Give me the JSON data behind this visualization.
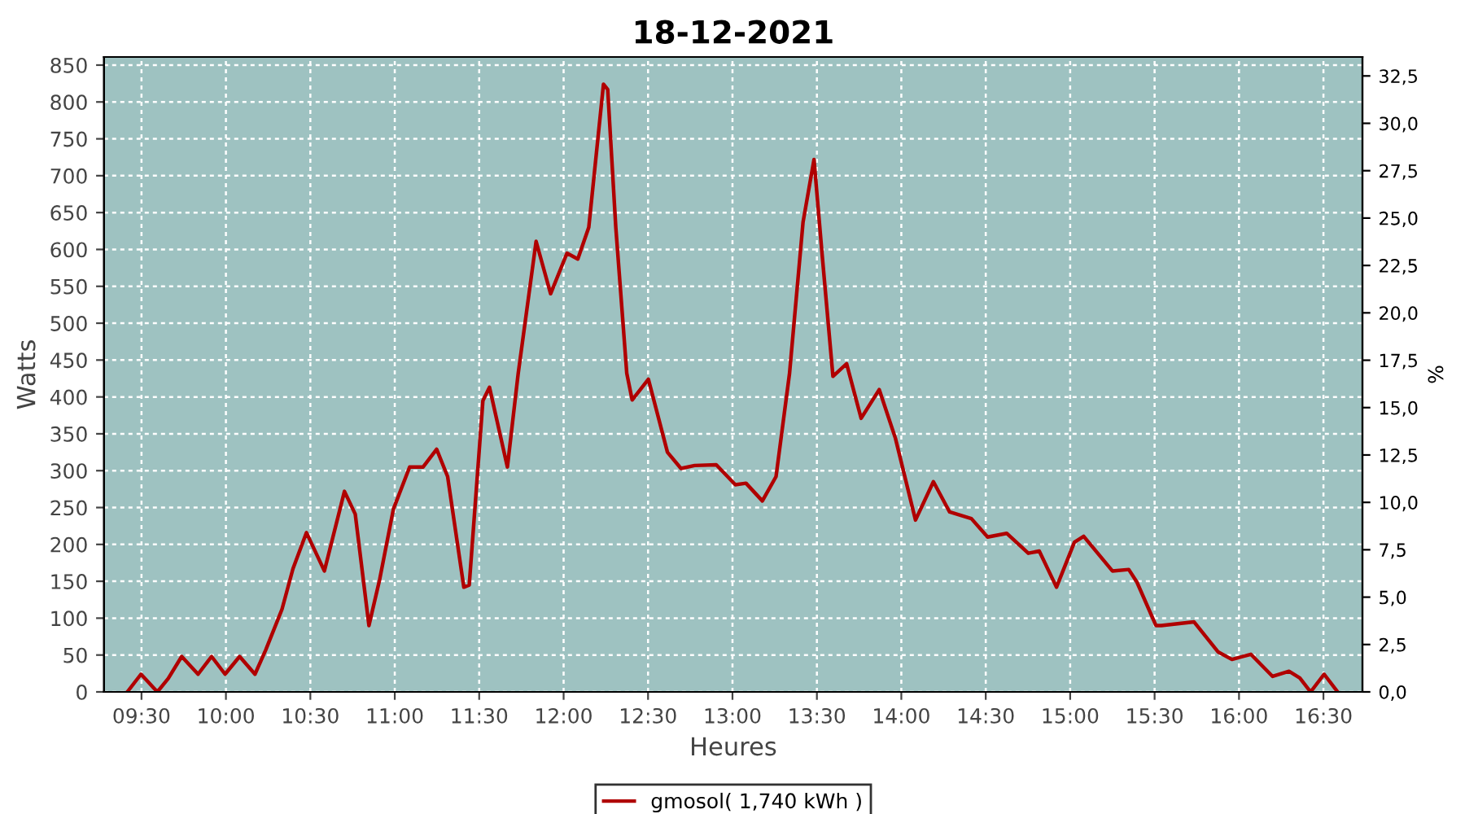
{
  "chart_data": {
    "type": "line",
    "title": "18-12-2021",
    "xlabel": "Heures",
    "ylabel": "Watts",
    "y2label": "%",
    "series": [
      {
        "name": "gmosol( 1,740 kWh )",
        "color": "#b00000",
        "x": [
          9.416,
          9.497,
          9.594,
          9.658,
          9.738,
          9.835,
          9.915,
          9.995,
          10.081,
          10.172,
          10.236,
          10.332,
          10.397,
          10.477,
          10.583,
          10.702,
          10.766,
          10.847,
          10.911,
          10.992,
          11.088,
          11.168,
          11.248,
          11.313,
          11.409,
          11.441,
          11.522,
          11.561,
          11.667,
          11.731,
          11.837,
          11.923,
          12.02,
          12.084,
          12.149,
          12.236,
          12.261,
          12.309,
          12.374,
          12.406,
          12.502,
          12.615,
          12.695,
          12.776,
          12.904,
          13.017,
          13.08,
          13.177,
          13.258,
          13.338,
          13.418,
          13.483,
          13.531,
          13.595,
          13.676,
          13.762,
          13.869,
          13.965,
          14.084,
          14.19,
          14.286,
          14.415,
          14.511,
          14.624,
          14.752,
          14.817,
          14.919,
          15.025,
          15.08,
          15.25,
          15.347,
          15.395,
          15.508,
          15.54,
          15.733,
          15.877,
          15.958,
          16.07,
          16.199,
          16.296,
          16.36,
          16.424,
          16.504,
          16.584
        ],
        "values": [
          0,
          24,
          0,
          18,
          48,
          24,
          48,
          24,
          48,
          24,
          57,
          112,
          167,
          216,
          164,
          272,
          241,
          90,
          153,
          248,
          305,
          305,
          329,
          292,
          142,
          145,
          395,
          413,
          305,
          432,
          611,
          540,
          595,
          587,
          630,
          824,
          817,
          630,
          432,
          396,
          424,
          325,
          303,
          307,
          308,
          281,
          283,
          259,
          292,
          432,
          637,
          722,
          593,
          428,
          445,
          371,
          410,
          344,
          233,
          285,
          244,
          235,
          210,
          215,
          188,
          191,
          142,
          203,
          211,
          164,
          166,
          149,
          90,
          90,
          95,
          54,
          44,
          51,
          21,
          28,
          19,
          0,
          24,
          0
        ]
      }
    ],
    "xlim": [
      9.278,
      16.731
    ],
    "xticks": [
      {
        "value": 9.5,
        "label": "09:30"
      },
      {
        "value": 10,
        "label": "10:00"
      },
      {
        "value": 10.5,
        "label": "10:30"
      },
      {
        "value": 11,
        "label": "11:00"
      },
      {
        "value": 11.5,
        "label": "11:30"
      },
      {
        "value": 12,
        "label": "12:00"
      },
      {
        "value": 12.5,
        "label": "12:30"
      },
      {
        "value": 13,
        "label": "13:00"
      },
      {
        "value": 13.5,
        "label": "13:30"
      },
      {
        "value": 14,
        "label": "14:00"
      },
      {
        "value": 14.5,
        "label": "14:30"
      },
      {
        "value": 15,
        "label": "15:00"
      },
      {
        "value": 15.5,
        "label": "15:30"
      },
      {
        "value": 16,
        "label": "16:00"
      },
      {
        "value": 16.5,
        "label": "16:30"
      }
    ],
    "ylim": [
      0,
      861
    ],
    "yticks": [
      0,
      50,
      100,
      150,
      200,
      250,
      300,
      350,
      400,
      450,
      500,
      550,
      600,
      650,
      700,
      750,
      800,
      850
    ],
    "y2lim": [
      0,
      33.5
    ],
    "y2ticks": [
      {
        "value": 0,
        "label": "0,0"
      },
      {
        "value": 2.5,
        "label": "2,5"
      },
      {
        "value": 5,
        "label": "5,0"
      },
      {
        "value": 7.5,
        "label": "7,5"
      },
      {
        "value": 10,
        "label": "10,0"
      },
      {
        "value": 12.5,
        "label": "12,5"
      },
      {
        "value": 15,
        "label": "15,0"
      },
      {
        "value": 17.5,
        "label": "17,5"
      },
      {
        "value": 20,
        "label": "20,0"
      },
      {
        "value": 22.5,
        "label": "22,5"
      },
      {
        "value": 25,
        "label": "25,0"
      },
      {
        "value": 27.5,
        "label": "27,5"
      },
      {
        "value": 30,
        "label": "30,0"
      },
      {
        "value": 32.5,
        "label": "32,5"
      }
    ],
    "grid": true,
    "legend": "bottom",
    "marker": "none",
    "line_style": "solid"
  }
}
